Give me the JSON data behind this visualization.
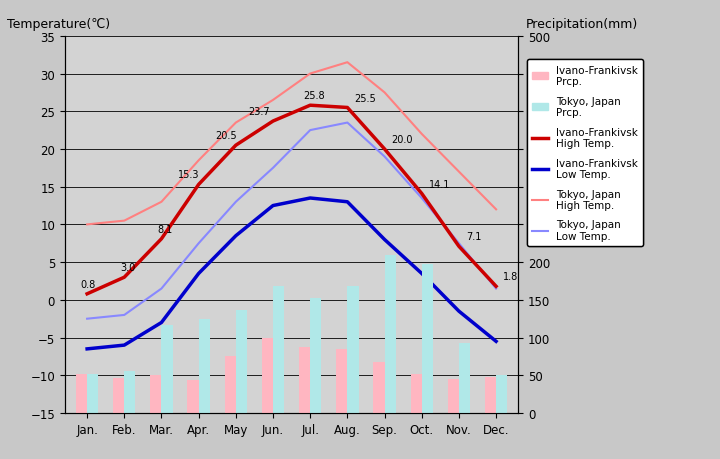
{
  "months": [
    "Jan.",
    "Feb.",
    "Mar.",
    "Apr.",
    "May",
    "Jun.",
    "Jul.",
    "Aug.",
    "Sep.",
    "Oct.",
    "Nov.",
    "Dec."
  ],
  "ivano_high": [
    0.8,
    3.0,
    8.1,
    15.3,
    20.5,
    23.7,
    25.8,
    25.5,
    20.0,
    14.1,
    7.1,
    1.8
  ],
  "ivano_low": [
    -6.5,
    -6.0,
    -3.0,
    3.5,
    8.5,
    12.5,
    13.5,
    13.0,
    8.0,
    3.5,
    -1.5,
    -5.5
  ],
  "tokyo_high": [
    10.0,
    10.5,
    13.0,
    18.5,
    23.5,
    26.5,
    30.0,
    31.5,
    27.5,
    22.0,
    17.0,
    12.0
  ],
  "tokyo_low": [
    -2.5,
    -2.0,
    1.5,
    7.5,
    13.0,
    17.5,
    22.5,
    23.5,
    19.0,
    13.5,
    7.5,
    1.5
  ],
  "ivano_prcp_mm": [
    52,
    47,
    50,
    44,
    75,
    100,
    87,
    85,
    67,
    52,
    45,
    48
  ],
  "tokyo_prcp_mm": [
    52,
    56,
    117,
    125,
    137,
    168,
    153,
    168,
    210,
    197,
    93,
    51
  ],
  "title_left": "Temperature(℃)",
  "title_right": "Precipitation(mm)",
  "ylim_left": [
    -15,
    35
  ],
  "ylim_right": [
    0,
    500
  ],
  "bg_color": "#c8c8c8",
  "plot_bg_color": "#d3d3d3",
  "ivano_high_color": "#cc0000",
  "ivano_low_color": "#0000cc",
  "tokyo_high_color": "#ff8080",
  "tokyo_low_color": "#8888ff",
  "ivano_prcp_color": "#ffb6c1",
  "tokyo_prcp_color": "#b0e8e8",
  "legend_labels": [
    "Ivano-Frankivsk\nPrcp.",
    "Tokyo, Japan\nPrcp.",
    "Ivano-Frankivsk\nHigh Temp.",
    "Ivano-Frankivsk\nLow Temp.",
    "Tokyo, Japan\nHigh Temp.",
    "Tokyo, Japan\nLow Temp."
  ]
}
